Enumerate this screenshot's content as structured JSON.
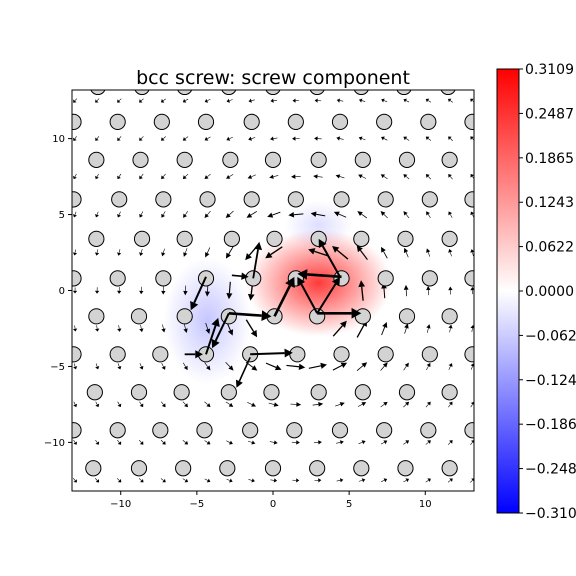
{
  "chart_data": {
    "type": "heatmap",
    "title": "bcc screw: screw component",
    "xlabel": "",
    "ylabel": "",
    "xlim": [
      -13.2,
      13.2
    ],
    "ylim": [
      -13.2,
      13.2
    ],
    "xticks": [
      -10,
      -5,
      0,
      5,
      10
    ],
    "yticks": [
      -10,
      -5,
      0,
      5,
      10
    ],
    "xtick_labels": [
      "−10",
      "−5",
      "0",
      "5",
      "10"
    ],
    "ytick_labels": [
      "−10",
      "−5",
      "0",
      "5",
      "10"
    ],
    "colormap": "bwr",
    "colorbar": {
      "range": [
        -0.3109,
        0.3109
      ],
      "ticks": [
        0.3109,
        0.2487,
        0.1865,
        0.1243,
        0.0622,
        0.0,
        -0.0622,
        -0.1243,
        -0.1865,
        -0.2487,
        -0.3109
      ],
      "labels": [
        "0.3109",
        "0.2487",
        "0.1865",
        "0.1243",
        "0.0622",
        "0.0000",
        "−0.0622",
        "−0.1243",
        "−0.1865",
        "−0.2487",
        "−0.3109"
      ]
    },
    "colors": {
      "positive": "#ff0000",
      "negative": "#0000ff",
      "zero": "#ffffff",
      "atom_fill": "#d3d3d3",
      "atom_edge": "#000000",
      "arrow": "#000000"
    },
    "field_blobs": [
      {
        "x": 3.0,
        "y": 0.5,
        "value": 0.24,
        "sx": 3.0,
        "sy": 2.2
      },
      {
        "x": -4.3,
        "y": -2.0,
        "value": -0.07,
        "sx": 1.8,
        "sy": 2.6
      },
      {
        "x": 3.0,
        "y": 4.3,
        "value": -0.04,
        "sx": 1.4,
        "sy": 1.0
      }
    ],
    "atoms_note": "",
    "atom_rows": [
      {
        "y": 13.4,
        "x": [
          -11.5,
          -8.6,
          -5.8,
          -2.9,
          0.0,
          2.9,
          5.8,
          8.6,
          11.5
        ]
      },
      {
        "y": 11.1,
        "x": [
          -13.1,
          -10.2,
          -7.3,
          -4.4,
          -1.4,
          1.5,
          4.4,
          7.3,
          10.2,
          13.1
        ]
      },
      {
        "y": 8.6,
        "x": [
          -11.6,
          -8.7,
          -5.8,
          -2.8,
          0.0,
          3.0,
          5.9,
          8.8,
          11.6
        ]
      },
      {
        "y": 6.0,
        "x": [
          -13.1,
          -10.1,
          -7.2,
          -4.3,
          -1.4,
          1.5,
          4.5,
          7.4,
          10.3,
          13.1
        ]
      },
      {
        "y": 3.4,
        "x": [
          -11.6,
          -8.6,
          -5.8,
          -2.7,
          0.1,
          3.0,
          5.8,
          8.7,
          11.6
        ]
      },
      {
        "y": 0.8,
        "x": [
          -13.1,
          -10.2,
          -7.2,
          -4.4,
          -1.3,
          1.5,
          4.5,
          7.4,
          10.3,
          13.1
        ]
      },
      {
        "y": -1.7,
        "x": [
          -11.6,
          -8.8,
          -5.8,
          -2.9,
          0.1,
          2.9,
          5.9,
          8.8,
          11.6
        ]
      },
      {
        "y": -4.2,
        "x": [
          -13.1,
          -10.2,
          -7.4,
          -4.4,
          -1.5,
          1.6,
          4.5,
          7.4,
          10.3,
          13.1
        ]
      },
      {
        "y": -6.7,
        "x": [
          -11.7,
          -8.8,
          -6.0,
          -2.9,
          -0.1,
          3.0,
          5.9,
          8.8,
          11.6
        ]
      },
      {
        "y": -9.2,
        "x": [
          -13.1,
          -10.2,
          -7.4,
          -4.5,
          -1.5,
          1.4,
          4.4,
          7.3,
          10.2,
          13.1
        ]
      },
      {
        "y": -11.7,
        "x": [
          -11.8,
          -8.8,
          -5.9,
          -3.0,
          0.0,
          2.9,
          5.8,
          8.7,
          11.6
        ]
      }
    ],
    "strong_arrows": [
      {
        "from": [
          -2.9,
          -1.5
        ],
        "to": [
          -0.1,
          -1.7
        ],
        "w": 2.6
      },
      {
        "from": [
          0.1,
          -1.7
        ],
        "to": [
          1.4,
          0.9
        ],
        "w": 2.6
      },
      {
        "from": [
          4.5,
          0.9
        ],
        "to": [
          1.6,
          1.1
        ],
        "w": 2.6
      },
      {
        "from": [
          2.9,
          -1.5
        ],
        "to": [
          5.8,
          -1.5
        ],
        "w": 2.6
      },
      {
        "from": [
          2.9,
          -1.5
        ],
        "to": [
          1.6,
          0.9
        ],
        "w": 2.0
      },
      {
        "from": [
          2.9,
          -1.5
        ],
        "to": [
          4.4,
          0.9
        ],
        "w": 2.0
      },
      {
        "from": [
          4.4,
          0.9
        ],
        "to": [
          3.0,
          3.4
        ],
        "w": 2.0
      },
      {
        "from": [
          -4.4,
          0.9
        ],
        "to": [
          -5.4,
          -1.3
        ],
        "w": 2.0
      },
      {
        "from": [
          -4.4,
          -4.2
        ],
        "to": [
          -3.6,
          -1.8
        ],
        "w": 2.0
      },
      {
        "from": [
          -1.5,
          -4.2
        ],
        "to": [
          1.3,
          -4.1
        ],
        "w": 2.0
      },
      {
        "from": [
          -2.9,
          -1.5
        ],
        "to": [
          -4.0,
          -3.8
        ],
        "w": 2.0
      },
      {
        "from": [
          -5.8,
          -4.2
        ],
        "to": [
          -4.6,
          -4.2
        ],
        "w": 1.8
      },
      {
        "from": [
          -1.3,
          0.8
        ],
        "to": [
          -0.9,
          3.2
        ],
        "w": 1.8
      },
      {
        "from": [
          -2.7,
          1.0
        ],
        "to": [
          -1.6,
          0.9
        ],
        "w": 1.6
      },
      {
        "from": [
          -1.5,
          -4.4
        ],
        "to": [
          -2.4,
          -6.4
        ],
        "w": 1.6
      }
    ]
  }
}
